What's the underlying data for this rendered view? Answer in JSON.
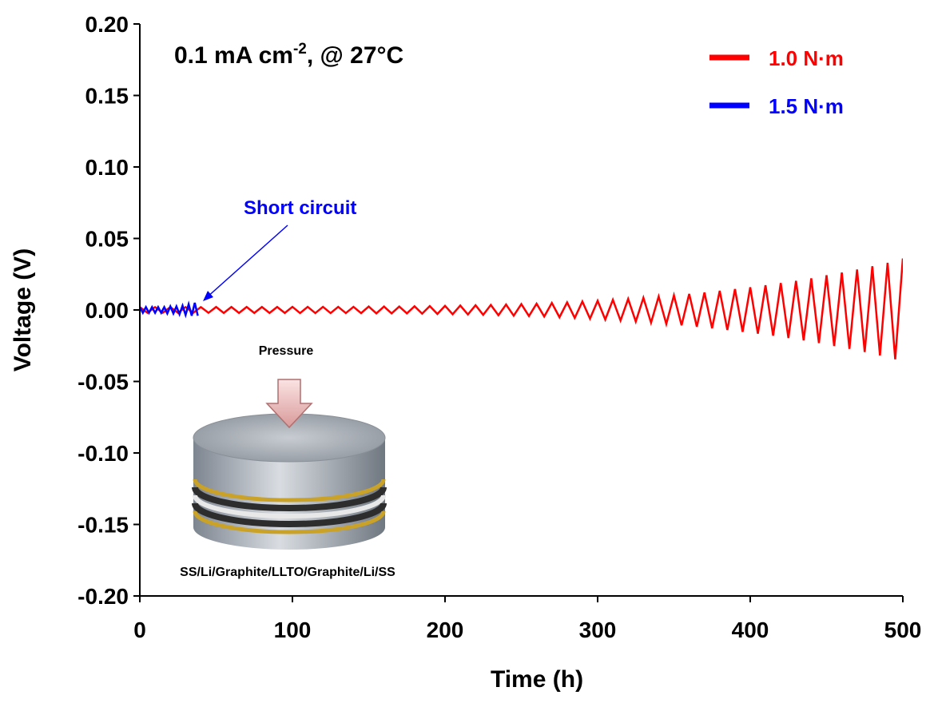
{
  "chart_data": {
    "type": "line",
    "title_parts": [
      "0.1 mA cm",
      "-2",
      ", @ 27°C"
    ],
    "xlabel": "Time (h)",
    "ylabel": "Voltage (V)",
    "xlim": [
      0,
      500
    ],
    "xticks": [
      0,
      100,
      200,
      300,
      400,
      500
    ],
    "ylim": [
      -0.2,
      0.2
    ],
    "yticks": [
      {
        "value": -0.2,
        "label": "-0.20"
      },
      {
        "value": -0.15,
        "label": "-0.15"
      },
      {
        "value": -0.1,
        "label": "-0.10"
      },
      {
        "value": -0.05,
        "label": "-0.05"
      },
      {
        "value": 0,
        "label": "0.00"
      },
      {
        "value": 0.05,
        "label": "0.05"
      },
      {
        "value": 0.1,
        "label": "0.10"
      },
      {
        "value": 0.15,
        "label": "0.15"
      },
      {
        "value": 0.2,
        "label": "0.20"
      }
    ],
    "legend": "upper right",
    "series": [
      {
        "name": "1.0 N·m",
        "color": "#ff0000",
        "x": [
          0,
          5,
          10,
          15,
          20,
          25,
          30,
          35,
          40,
          45,
          50,
          55,
          60,
          65,
          70,
          75,
          80,
          85,
          90,
          95,
          100,
          105,
          110,
          115,
          120,
          125,
          130,
          135,
          140,
          145,
          150,
          155,
          160,
          165,
          170,
          175,
          180,
          185,
          190,
          195,
          200,
          205,
          210,
          215,
          220,
          225,
          230,
          235,
          240,
          245,
          250,
          255,
          260,
          265,
          270,
          275,
          280,
          285,
          290,
          295,
          300,
          305,
          310,
          315,
          320,
          325,
          330,
          335,
          340,
          345,
          350,
          355,
          360,
          365,
          370,
          375,
          380,
          385,
          390,
          395,
          400,
          405,
          410,
          415,
          420,
          425,
          430,
          435,
          440,
          445,
          450,
          455,
          460,
          465,
          470,
          475,
          480,
          485,
          490,
          495,
          500
        ],
        "values": [
          0.002,
          -0.002,
          0.002,
          -0.002,
          0.002,
          -0.002,
          0.002,
          -0.002,
          0.002,
          -0.002,
          0.0021,
          -0.0021,
          0.0021,
          -0.0021,
          0.0021,
          -0.0021,
          0.0021,
          -0.0021,
          0.0021,
          -0.0021,
          0.0022,
          -0.0022,
          0.0022,
          -0.0022,
          0.0022,
          -0.0022,
          0.0022,
          -0.0022,
          0.0022,
          -0.0022,
          0.0024,
          -0.0024,
          0.0024,
          -0.0024,
          0.0024,
          -0.0024,
          0.0026,
          -0.0026,
          0.0027,
          -0.0028,
          0.0029,
          -0.003,
          0.0031,
          -0.0032,
          0.0033,
          -0.0034,
          0.0035,
          -0.0037,
          0.0038,
          -0.004,
          0.0041,
          -0.0043,
          0.0044,
          -0.0046,
          0.0049,
          -0.0051,
          0.0053,
          -0.0056,
          0.0059,
          -0.0061,
          0.0064,
          -0.0067,
          0.0071,
          -0.0074,
          0.0077,
          -0.0081,
          0.0085,
          -0.0089,
          0.0094,
          -0.0098,
          0.0102,
          -0.0107,
          0.0112,
          -0.0117,
          0.0122,
          -0.0128,
          0.0134,
          -0.014,
          0.0146,
          -0.0153,
          0.0159,
          -0.0166,
          0.0173,
          -0.018,
          0.0188,
          -0.0196,
          0.0204,
          -0.0213,
          0.0221,
          -0.0232,
          0.0243,
          -0.0252,
          0.0262,
          -0.0272,
          0.0283,
          -0.0294,
          0.0306,
          -0.0318,
          0.033,
          -0.0345,
          0.036
        ]
      },
      {
        "name": "1.5 N·m",
        "color": "#0000ff",
        "x": [
          0,
          2,
          4,
          6,
          8,
          10,
          12,
          14,
          16,
          18,
          20,
          22,
          24,
          26,
          28,
          30,
          32,
          34,
          36,
          38
        ],
        "values": [
          0.002,
          -0.002,
          0.002,
          -0.002,
          0.002,
          -0.002,
          0.002,
          -0.002,
          0.002,
          -0.0025,
          0.0025,
          -0.0025,
          0.0025,
          -0.003,
          0.003,
          -0.0035,
          0.004,
          -0.004,
          0.005,
          -0.004
        ]
      }
    ],
    "annotations": [
      {
        "text": "Short circuit",
        "color": "#0000ff"
      }
    ],
    "inset": {
      "pressure_label": "Pressure",
      "stack_label": "SS/Li/Graphite/LLTO/Graphite/Li/SS"
    }
  }
}
